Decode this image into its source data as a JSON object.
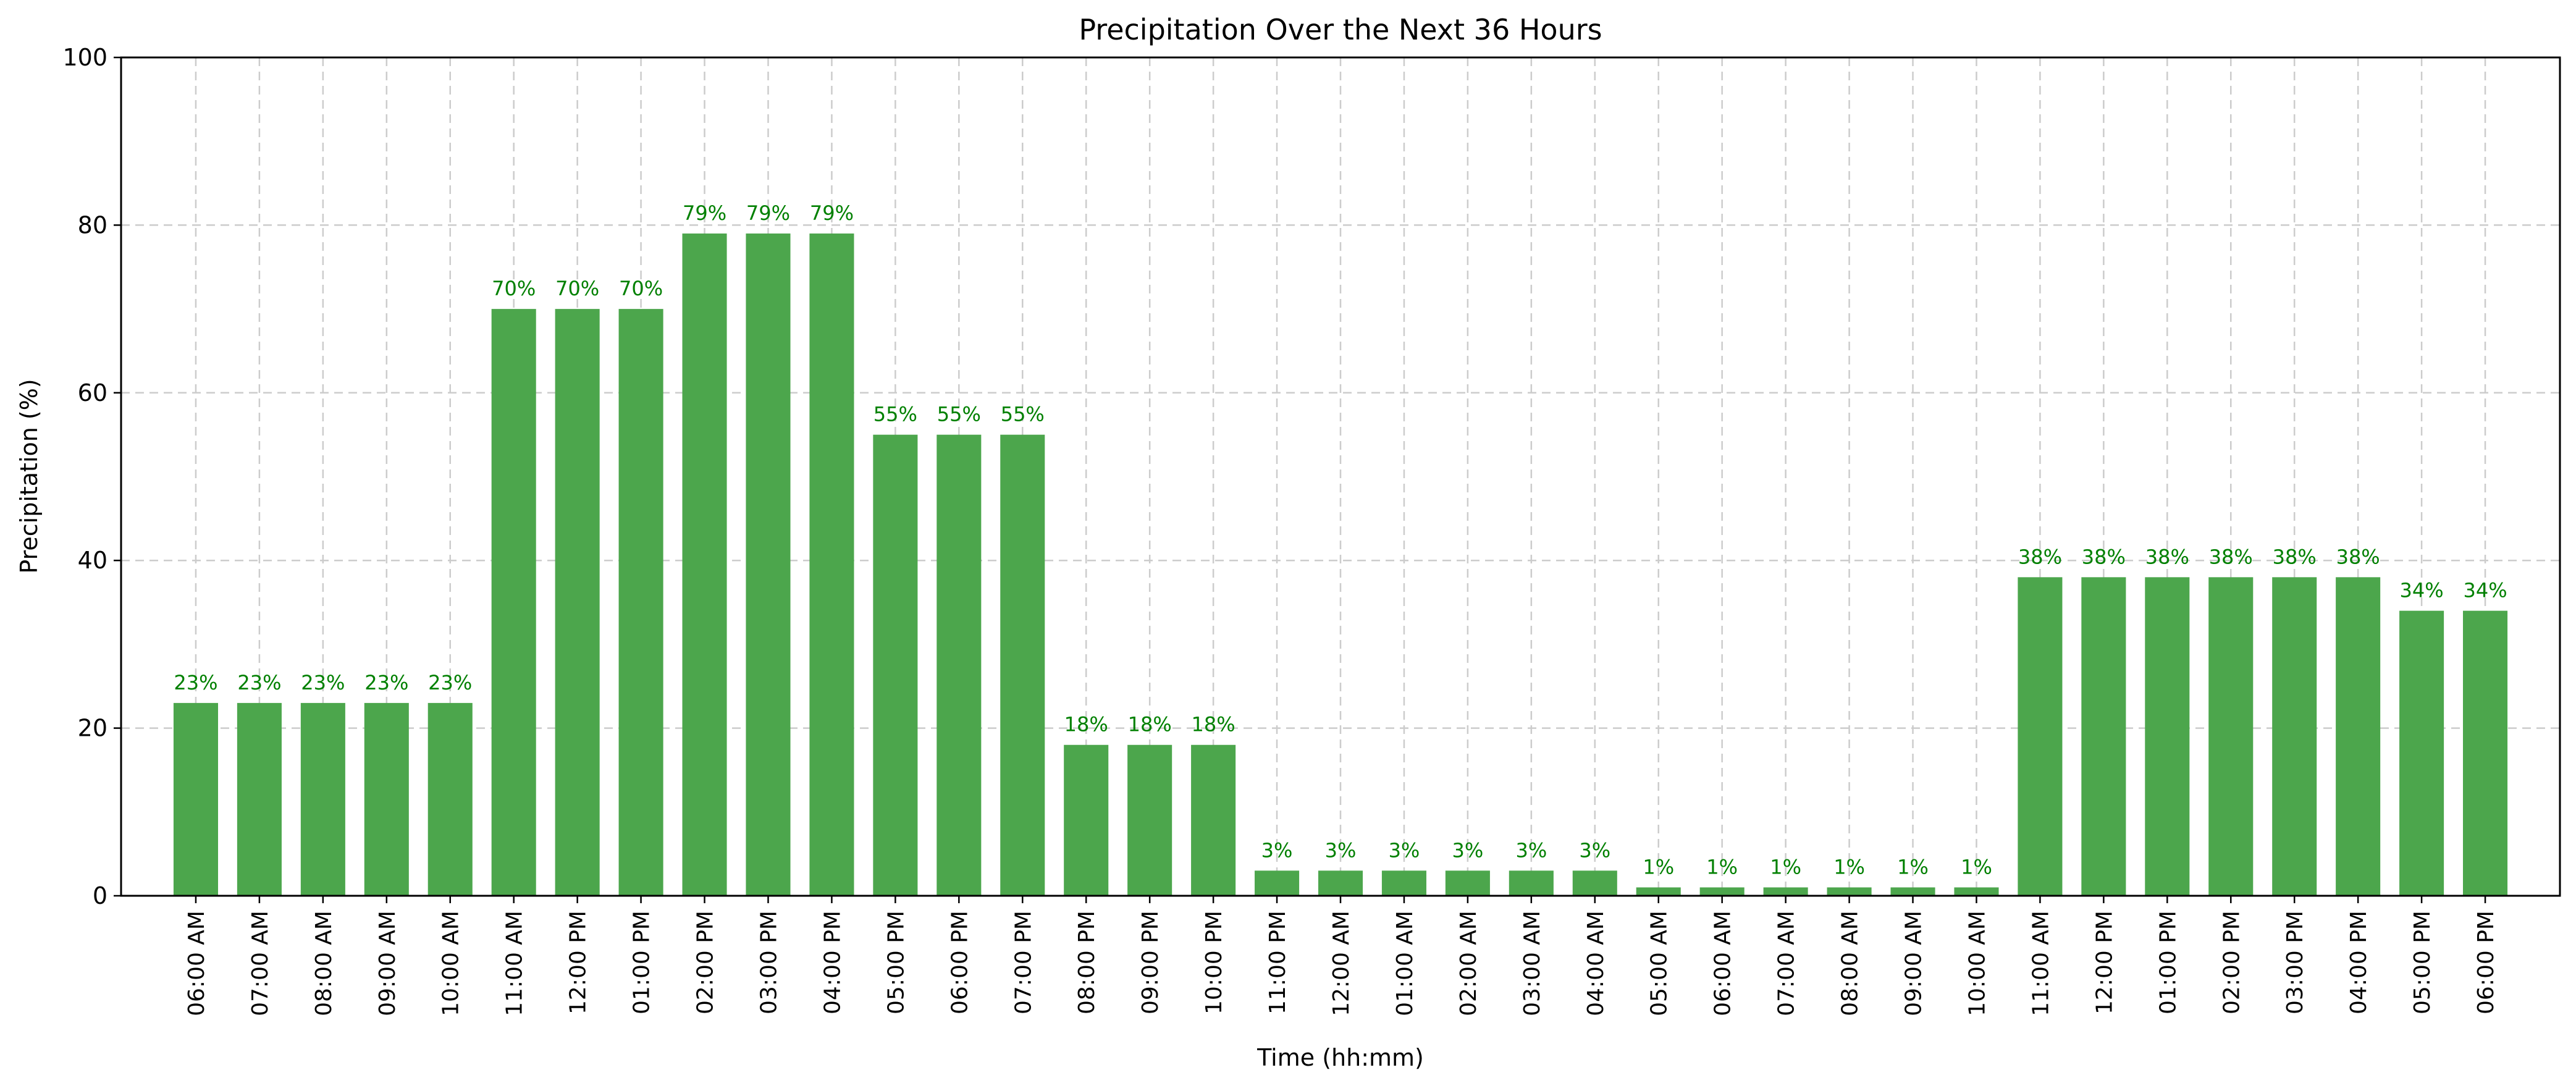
{
  "chart_data": {
    "type": "bar",
    "title": "Precipitation Over the Next 36 Hours",
    "xlabel": "Time (hh:mm)",
    "ylabel": "Precipitation (%)",
    "ylim": [
      0,
      100
    ],
    "yticks": [
      0,
      20,
      40,
      60,
      80,
      100
    ],
    "grid": true,
    "bar_color": "#4ca64c",
    "label_color": "#008000",
    "categories": [
      "06:00 AM",
      "07:00 AM",
      "08:00 AM",
      "09:00 AM",
      "10:00 AM",
      "11:00 AM",
      "12:00 PM",
      "01:00 PM",
      "02:00 PM",
      "03:00 PM",
      "04:00 PM",
      "05:00 PM",
      "06:00 PM",
      "07:00 PM",
      "08:00 PM",
      "09:00 PM",
      "10:00 PM",
      "11:00 PM",
      "12:00 AM",
      "01:00 AM",
      "02:00 AM",
      "03:00 AM",
      "04:00 AM",
      "05:00 AM",
      "06:00 AM",
      "07:00 AM",
      "08:00 AM",
      "09:00 AM",
      "10:00 AM",
      "11:00 AM",
      "12:00 PM",
      "01:00 PM",
      "02:00 PM",
      "03:00 PM",
      "04:00 PM",
      "05:00 PM",
      "06:00 PM"
    ],
    "values": [
      23,
      23,
      23,
      23,
      23,
      70,
      70,
      70,
      79,
      79,
      79,
      55,
      55,
      55,
      18,
      18,
      18,
      3,
      3,
      3,
      3,
      3,
      3,
      1,
      1,
      1,
      1,
      1,
      1,
      38,
      38,
      38,
      38,
      38,
      38,
      34,
      34
    ],
    "data_labels": [
      "23%",
      "23%",
      "23%",
      "23%",
      "23%",
      "70%",
      "70%",
      "70%",
      "79%",
      "79%",
      "79%",
      "55%",
      "55%",
      "55%",
      "18%",
      "18%",
      "18%",
      "3%",
      "3%",
      "3%",
      "3%",
      "3%",
      "3%",
      "1%",
      "1%",
      "1%",
      "1%",
      "1%",
      "1%",
      "38%",
      "38%",
      "38%",
      "38%",
      "38%",
      "38%",
      "34%",
      "34%"
    ]
  }
}
